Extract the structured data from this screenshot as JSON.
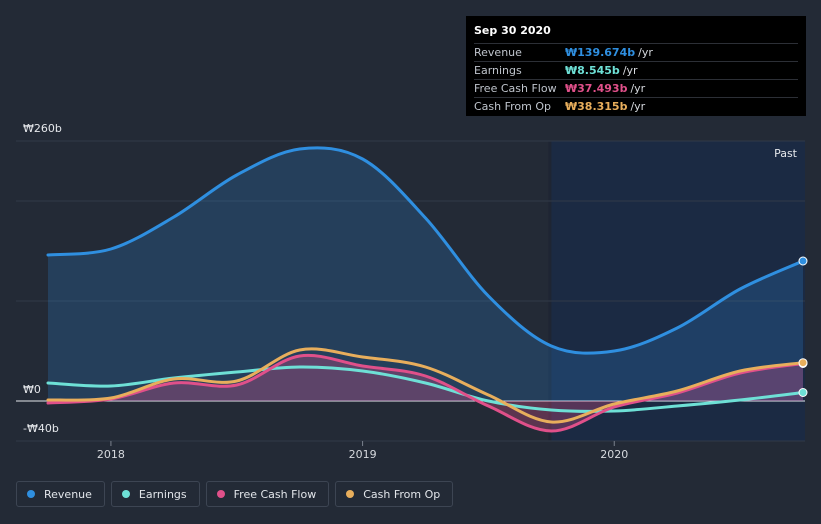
{
  "tooltip": {
    "date": "Sep 30 2020",
    "rows": [
      {
        "name": "Revenue",
        "value": "₩139.674b",
        "unit": "/yr",
        "color": "#2f8fe0"
      },
      {
        "name": "Earnings",
        "value": "₩8.545b",
        "unit": "/yr",
        "color": "#6ee0d6"
      },
      {
        "name": "Free Cash Flow",
        "value": "₩37.493b",
        "unit": "/yr",
        "color": "#e0508a"
      },
      {
        "name": "Cash From Op",
        "value": "₩38.315b",
        "unit": "/yr",
        "color": "#e8ae5c"
      }
    ]
  },
  "legend": [
    {
      "name": "Revenue",
      "color": "#2f8fe0"
    },
    {
      "name": "Earnings",
      "color": "#6ee0d6"
    },
    {
      "name": "Free Cash Flow",
      "color": "#e0508a"
    },
    {
      "name": "Cash From Op",
      "color": "#e8ae5c"
    }
  ],
  "chart_data": {
    "type": "line",
    "title": "",
    "xlabel": "",
    "ylabel": "",
    "ylim": [
      -40,
      260
    ],
    "xlim": [
      2017.75,
      2020.75
    ],
    "y_tick_labels": [
      {
        "value": 260,
        "label": "₩260b"
      },
      {
        "value": 0,
        "label": "₩0"
      },
      {
        "value": -40,
        "label": "-₩40b"
      }
    ],
    "x_ticks": [
      {
        "value": 2018,
        "label": "2018"
      },
      {
        "value": 2019,
        "label": "2019"
      },
      {
        "value": 2020,
        "label": "2020"
      }
    ],
    "past_label": "Past",
    "past_start": 2019.75,
    "series": [
      {
        "name": "Revenue",
        "color": "#2f8fe0",
        "fill": true,
        "points": [
          [
            2017.75,
            146
          ],
          [
            2018.0,
            152
          ],
          [
            2018.25,
            184
          ],
          [
            2018.5,
            226
          ],
          [
            2018.75,
            252
          ],
          [
            2019.0,
            242
          ],
          [
            2019.25,
            183
          ],
          [
            2019.5,
            105
          ],
          [
            2019.75,
            55
          ],
          [
            2020.0,
            50
          ],
          [
            2020.25,
            73
          ],
          [
            2020.5,
            112
          ],
          [
            2020.75,
            140
          ]
        ]
      },
      {
        "name": "Earnings",
        "color": "#6ee0d6",
        "fill": false,
        "points": [
          [
            2017.75,
            18
          ],
          [
            2018.0,
            15
          ],
          [
            2018.25,
            23
          ],
          [
            2018.5,
            29
          ],
          [
            2018.75,
            34
          ],
          [
            2019.0,
            30
          ],
          [
            2019.25,
            18
          ],
          [
            2019.5,
            0
          ],
          [
            2019.75,
            -9
          ],
          [
            2020.0,
            -10
          ],
          [
            2020.25,
            -5
          ],
          [
            2020.5,
            1
          ],
          [
            2020.75,
            8.5
          ]
        ]
      },
      {
        "name": "Free Cash Flow",
        "color": "#e0508a",
        "fill": true,
        "points": [
          [
            2017.75,
            -2
          ],
          [
            2018.0,
            2
          ],
          [
            2018.25,
            18
          ],
          [
            2018.5,
            16
          ],
          [
            2018.75,
            45
          ],
          [
            2019.0,
            35
          ],
          [
            2019.25,
            25
          ],
          [
            2019.5,
            -5
          ],
          [
            2019.75,
            -30
          ],
          [
            2020.0,
            -6
          ],
          [
            2020.25,
            8
          ],
          [
            2020.5,
            28
          ],
          [
            2020.75,
            37.5
          ]
        ]
      },
      {
        "name": "Cash From Op",
        "color": "#e8ae5c",
        "fill": false,
        "points": [
          [
            2017.75,
            1
          ],
          [
            2018.0,
            3
          ],
          [
            2018.25,
            22
          ],
          [
            2018.5,
            20
          ],
          [
            2018.75,
            51
          ],
          [
            2019.0,
            44
          ],
          [
            2019.25,
            34
          ],
          [
            2019.5,
            6
          ],
          [
            2019.75,
            -21
          ],
          [
            2020.0,
            -3
          ],
          [
            2020.25,
            10
          ],
          [
            2020.5,
            30
          ],
          [
            2020.75,
            38.3
          ]
        ]
      }
    ]
  }
}
